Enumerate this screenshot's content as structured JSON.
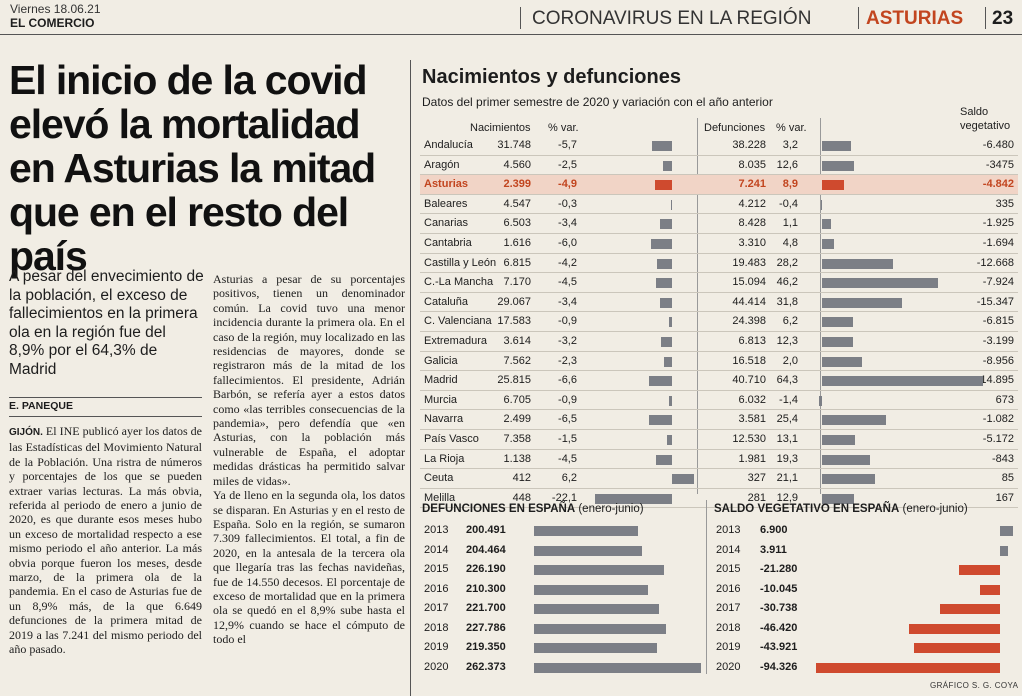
{
  "header": {
    "date": "Viernes 18.06.21",
    "paper": "EL COMERCIO",
    "section": "CORONAVIRUS EN LA REGIÓN",
    "region": "ASTURIAS",
    "page": "23"
  },
  "article": {
    "headline": "El inicio de la covid elevó la mortalidad en Asturias la mitad que en el resto del país",
    "subhead": "A pesar del envecimiento de la población, el exceso de fallecimientos en la primera ola en la región fue del 8,9% por el 64,3% de Madrid",
    "author": "E. PANEQUE",
    "dateline": "GIJÓN.",
    "col1_text": " El INE publicó ayer los datos de las Estadísticas del Movimiento Natural de la Población. Una ristra de números y porcentajes de los que se pueden extraer varias lecturas. La más obvia, referida al periodo de enero a junio de 2020, es que durante esos meses hubo un exceso de mortalidad respecto a ese mismo periodo el año anterior. La más obvia porque fueron los meses, desde marzo, de la primera ola de la pandemia. En el caso de Asturias fue de un 8,9% más, de la que 6.649 defunciones de la primera mitad de 2019 a las 7.241 del mismo periodo del año pasado.",
    "col2_text": "Asturias a pesar de su porcentajes positivos, tienen un denominador común. La covid tuvo una menor incidencia durante la primera ola. En el caso de la región, muy localizado en las residencias de mayores, donde se registraron más de la mitad de los fallecimientos. El presidente, Adrián Barbón, se refería ayer a estos datos como «las terribles consecuencias de la pandemia», pero defendía que «en Asturias, con la población más vulnerable de España, el adoptar medidas drásticas ha permitido salvar miles de vidas».\n    Ya de lleno en la segunda ola, los datos se disparan. En Asturias y en el resto de España. Solo en la región, se sumaron 7.309 fallecimientos. El total, a fin de 2020, en la antesala de la tercera ola que llegaría tras las fechas navideñas, fue de 14.550 decesos. El porcentaje de exceso de mortalidad que en la primera ola se quedó en el 8,9% sube hasta el 12,9% cuando se hace el cómputo de todo el"
  },
  "graphic": {
    "title": "Nacimientos y defunciones",
    "subtitle": "Datos del primer semestre de 2020 y variación con el año anterior",
    "headers": {
      "births": "Nacimientos",
      "births_var": "% var.",
      "deaths": "Defunciones",
      "deaths_var": "% var.",
      "balance_line1": "Saldo",
      "balance_line2": "vegetativo"
    },
    "credit": "GRÁFICO S. G. COYA"
  },
  "chart_data": [
    {
      "type": "table",
      "title": "Nacimientos y defunciones",
      "subtitle": "Datos del primer semestre de 2020 y variación con el año anterior",
      "columns": [
        "",
        "Nacimientos",
        "% var.",
        "Defunciones",
        "% var.",
        "Saldo vegetativo"
      ],
      "rows": [
        {
          "region": "Andalucía",
          "births": "31.748",
          "births_var": "-5,7",
          "deaths": "38.228",
          "deaths_var": "3,2",
          "balance": "-6.480",
          "bv": -5.7,
          "dv": 3.2,
          "sv": -6480
        },
        {
          "region": "Aragón",
          "births": "4.560",
          "births_var": "-2,5",
          "deaths": "8.035",
          "deaths_var": "12,6",
          "balance": "-3475",
          "bv": -2.5,
          "dv": 12.6,
          "sv": -3475
        },
        {
          "region": "Asturias",
          "births": "2.399",
          "births_var": "-4,9",
          "deaths": "7.241",
          "deaths_var": "8,9",
          "balance": "-4.842",
          "bv": -4.9,
          "dv": 8.9,
          "sv": -4842,
          "highlight": true
        },
        {
          "region": "Baleares",
          "births": "4.547",
          "births_var": "-0,3",
          "deaths": "4.212",
          "deaths_var": "-0,4",
          "balance": "335",
          "bv": -0.3,
          "dv": -0.4,
          "sv": 335
        },
        {
          "region": "Canarias",
          "births": "6.503",
          "births_var": "-3,4",
          "deaths": "8.428",
          "deaths_var": "1,1",
          "balance": "-1.925",
          "bv": -3.4,
          "dv": 1.1,
          "sv": -1925
        },
        {
          "region": "Cantabria",
          "births": "1.616",
          "births_var": "-6,0",
          "deaths": "3.310",
          "deaths_var": "4,8",
          "balance": "-1.694",
          "bv": -6.0,
          "dv": 4.8,
          "sv": -1694
        },
        {
          "region": "Castilla y León",
          "births": "6.815",
          "births_var": "-4,2",
          "deaths": "19.483",
          "deaths_var": "28,2",
          "balance": "-12.668",
          "bv": -4.2,
          "dv": 28.2,
          "sv": -12668
        },
        {
          "region": "C.-La Mancha",
          "births": "7.170",
          "births_var": "-4,5",
          "deaths": "15.094",
          "deaths_var": "46,2",
          "balance": "-7.924",
          "bv": -4.5,
          "dv": 46.2,
          "sv": -7924
        },
        {
          "region": "Cataluña",
          "births": "29.067",
          "births_var": "-3,4",
          "deaths": "44.414",
          "deaths_var": "31,8",
          "balance": "-15.347",
          "bv": -3.4,
          "dv": 31.8,
          "sv": -15347
        },
        {
          "region": "C. Valenciana",
          "births": "17.583",
          "births_var": "-0,9",
          "deaths": "24.398",
          "deaths_var": "6,2",
          "balance": "-6.815",
          "bv": -0.9,
          "dv": 6.2,
          "sv": -6815
        },
        {
          "region": "Extremadura",
          "births": "3.614",
          "births_var": "-3,2",
          "deaths": "6.813",
          "deaths_var": "12,3",
          "balance": "-3.199",
          "bv": -3.2,
          "dv": 12.3,
          "sv": -3199
        },
        {
          "region": "Galicia",
          "births": "7.562",
          "births_var": "-2,3",
          "deaths": "16.518",
          "deaths_var": "2,0",
          "balance": "-8.956",
          "bv": -2.3,
          "dv": 2.0,
          "sv": -8956
        },
        {
          "region": "Madrid",
          "births": "25.815",
          "births_var": "-6,6",
          "deaths": "40.710",
          "deaths_var": "64,3",
          "balance": "-14.895",
          "bv": -6.6,
          "dv": 64.3,
          "sv": -14895
        },
        {
          "region": "Murcia",
          "births": "6.705",
          "births_var": "-0,9",
          "deaths": "6.032",
          "deaths_var": "-1,4",
          "balance": "673",
          "bv": -0.9,
          "dv": -1.4,
          "sv": 673
        },
        {
          "region": "Navarra",
          "births": "2.499",
          "births_var": "-6,5",
          "deaths": "3.581",
          "deaths_var": "25,4",
          "balance": "-1.082",
          "bv": -6.5,
          "dv": 25.4,
          "sv": -1082
        },
        {
          "region": "País Vasco",
          "births": "7.358",
          "births_var": "-1,5",
          "deaths": "12.530",
          "deaths_var": "13,1",
          "balance": "-5.172",
          "bv": -1.5,
          "dv": 13.1,
          "sv": -5172
        },
        {
          "region": "La Rioja",
          "births": "1.138",
          "births_var": "-4,5",
          "deaths": "1.981",
          "deaths_var": "19,3",
          "balance": "-843",
          "bv": -4.5,
          "dv": 19.3,
          "sv": -843
        },
        {
          "region": "Ceuta",
          "births": "412",
          "births_var": "6,2",
          "deaths": "327",
          "deaths_var": "21,1",
          "balance": "85",
          "bv": 6.2,
          "dv": 21.1,
          "sv": 85
        },
        {
          "region": "Melilla",
          "births": "448",
          "births_var": "-22,1",
          "deaths": "281",
          "deaths_var": "12,9",
          "balance": "167",
          "bv": -22.1,
          "dv": 12.9,
          "sv": 167
        }
      ]
    },
    {
      "type": "bar",
      "title": "DEFUNCIONES EN ESPAÑA",
      "subtitle": "(enero-junio)",
      "categories": [
        "2013",
        "2014",
        "2015",
        "2016",
        "2017",
        "2018",
        "2019",
        "2020"
      ],
      "labels": [
        "200.491",
        "204.464",
        "226.190",
        "210.300",
        "221.700",
        "227.786",
        "219.350",
        "262.373"
      ],
      "values": [
        200491,
        204464,
        226190,
        210300,
        221700,
        227786,
        219350,
        262373
      ]
    },
    {
      "type": "bar",
      "title": "SALDO VEGETATIVO EN ESPAÑA",
      "subtitle": "(enero-junio)",
      "categories": [
        "2013",
        "2014",
        "2015",
        "2016",
        "2017",
        "2018",
        "2019",
        "2020"
      ],
      "labels": [
        "6.900",
        "3.911",
        "-21.280",
        "-10.045",
        "-30.738",
        "-46.420",
        "-43.921",
        "-94.326"
      ],
      "values": [
        6900,
        3911,
        -21280,
        -10045,
        -30738,
        -46420,
        -43921,
        -94326
      ]
    }
  ]
}
